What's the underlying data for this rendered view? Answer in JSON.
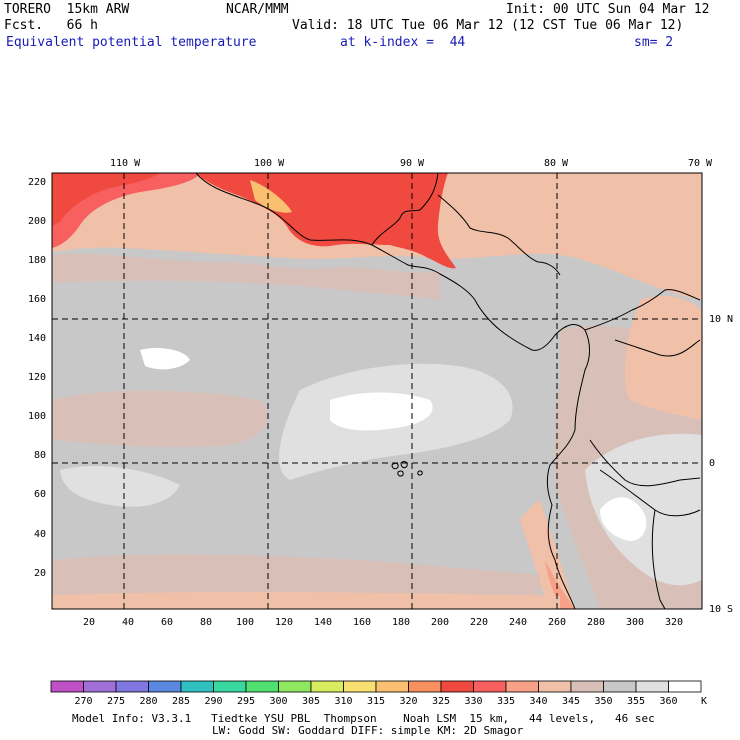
{
  "header": {
    "model": "TORERO  15km ARW",
    "fcst": "Fcst.   66 h",
    "center": "NCAR/MMM",
    "init": "Init: 00 UTC Sun 04 Mar 12",
    "valid": "Valid: 18 UTC Tue 06 Mar 12 (12 CST Tue 06 Mar 12)",
    "field": "Equivalent potential temperature",
    "level": "at k-index =  44",
    "smooth": "sm= 2"
  },
  "map": {
    "lon_labels": [
      "110 W",
      "100 W",
      "90 W",
      "80 W",
      "70 W"
    ],
    "lat_labels": [
      "10 N",
      "0",
      "10 S"
    ],
    "y_ticks": [
      "20",
      "40",
      "60",
      "80",
      "100",
      "120",
      "140",
      "160",
      "180",
      "200",
      "220"
    ],
    "x_ticks": [
      "20",
      "40",
      "60",
      "80",
      "100",
      "120",
      "140",
      "160",
      "180",
      "200",
      "220",
      "240",
      "260",
      "280",
      "300",
      "320"
    ]
  },
  "colorbar": {
    "unit": "K",
    "labels": [
      "270",
      "275",
      "280",
      "285",
      "290",
      "295",
      "300",
      "305",
      "310",
      "315",
      "320",
      "325",
      "330",
      "335",
      "340",
      "345",
      "350",
      "355",
      "360"
    ],
    "colors": [
      "#c050c8",
      "#a070d8",
      "#8078e0",
      "#5a88e0",
      "#30c0c0",
      "#38d8a0",
      "#50e070",
      "#90e860",
      "#d8ec60",
      "#f8e070",
      "#f8c070",
      "#f89060",
      "#f04a40",
      "#f86060",
      "#f8a088",
      "#f0c0a8",
      "#d8c0b8",
      "#c8c8c8",
      "#e0e0e0",
      "#ffffff"
    ]
  },
  "footer": {
    "line1": "Model Info: V3.3.1   Tiedtke YSU PBL  Thompson    Noah LSM  15 km,   44 levels,   46 sec",
    "line2": "LW: Godd SW: Goddard DIFF: simple KM: 2D Smagor"
  }
}
